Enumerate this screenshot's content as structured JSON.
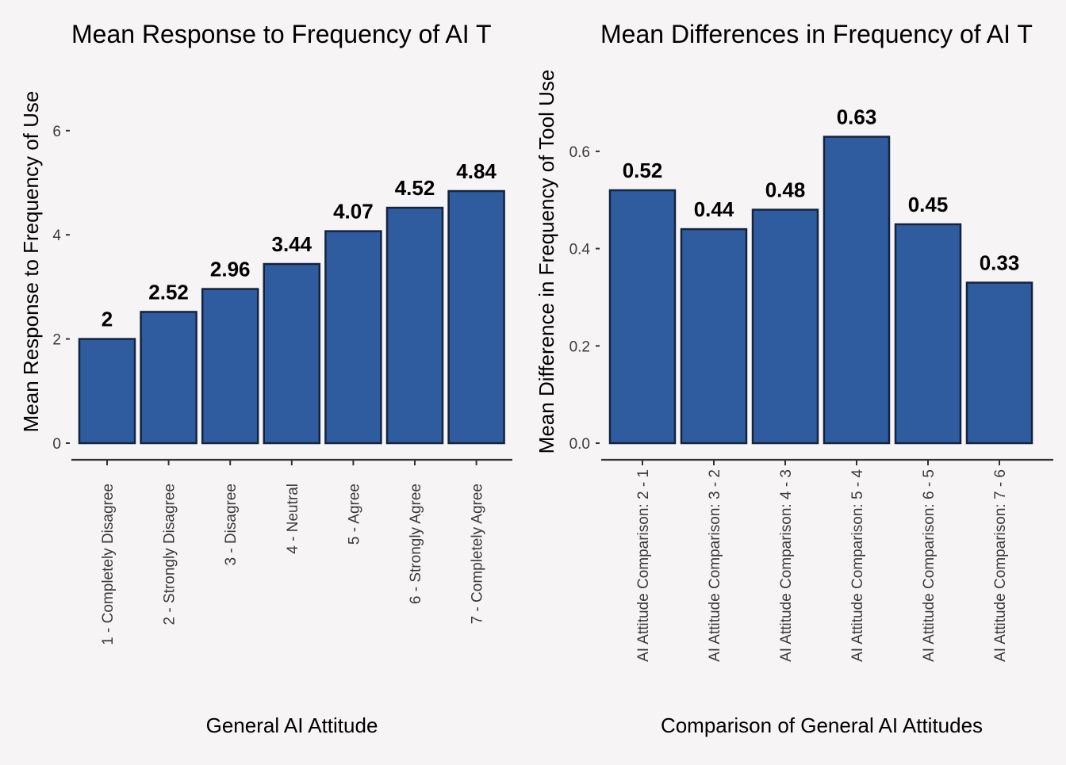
{
  "chart_data": [
    {
      "type": "bar",
      "title": "Mean Response to Frequency of AI T",
      "xlabel": "General AI Attitude",
      "ylabel": "Mean Response to Frequency of Use",
      "categories": [
        "1 - Completely Disagree",
        "2 - Strongly Disagree",
        "3 - Disagree",
        "4 - Neutral",
        "5 - Agree",
        "6 - Strongly Agree",
        "7 - Completely Agree"
      ],
      "values": [
        2,
        2.52,
        2.96,
        3.44,
        4.07,
        4.52,
        4.84
      ],
      "value_labels": [
        "2",
        "2.52",
        "2.96",
        "3.44",
        "4.07",
        "4.52",
        "4.84"
      ],
      "ylim": [
        0,
        7
      ],
      "yticks": [
        0,
        2,
        4,
        6
      ],
      "ytick_labels": [
        "0",
        "2",
        "4",
        "6"
      ],
      "grid": false,
      "bar_color": "#2F5C9E",
      "bar_edge_color": "#14233F"
    },
    {
      "type": "bar",
      "title": "Mean Differences in Frequency of AI T",
      "xlabel": "Comparison of General AI Attitudes",
      "ylabel": "Mean Difference in Frequency of Tool Use",
      "categories": [
        "AI Attitude Comparison: 2 - 1",
        "AI Attitude Comparison: 3 - 2",
        "AI Attitude Comparison: 4 - 3",
        "AI Attitude Comparison: 5 - 4",
        "AI Attitude Comparison: 6 - 5",
        "AI Attitude Comparison: 7 - 6"
      ],
      "values": [
        0.52,
        0.44,
        0.48,
        0.63,
        0.45,
        0.33
      ],
      "value_labels": [
        "0.52",
        "0.44",
        "0.48",
        "0.63",
        "0.45",
        "0.33"
      ],
      "ylim": [
        0,
        0.74
      ],
      "yticks": [
        0,
        0.2,
        0.4,
        0.6
      ],
      "ytick_labels": [
        "0.0",
        "0.2",
        "0.4",
        "0.6"
      ],
      "grid": false,
      "bar_color": "#2F5C9E",
      "bar_edge_color": "#14233F"
    }
  ],
  "page": {
    "background": "#F6F4F4"
  }
}
